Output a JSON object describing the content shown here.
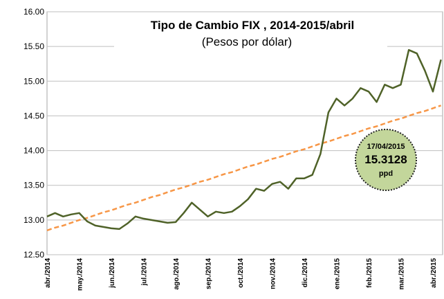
{
  "chart_data": {
    "type": "line",
    "title": "Tipo de Cambio FIX , 2014-2015/abril",
    "subtitle": "(Pesos por dólar)",
    "categories": [
      "abr./2014",
      null,
      null,
      null,
      "may./2014",
      null,
      null,
      null,
      "jun./2014",
      null,
      null,
      null,
      "jul./2014",
      null,
      null,
      null,
      "ago./2014",
      null,
      null,
      null,
      "sep./2014",
      null,
      null,
      null,
      "oct./2014",
      null,
      null,
      null,
      "nov./2014",
      null,
      null,
      null,
      "dic./2014",
      null,
      null,
      null,
      "ene./2015",
      null,
      null,
      null,
      "feb./2015",
      null,
      null,
      null,
      "mar./2015",
      null,
      null,
      null,
      "abr./2015",
      null
    ],
    "series": [
      {
        "color": "#4f6228",
        "values": [
          13.05,
          13.1,
          13.05,
          13.08,
          13.1,
          12.98,
          12.92,
          12.9,
          12.88,
          12.87,
          12.95,
          13.05,
          13.02,
          13.0,
          12.98,
          12.96,
          12.97,
          13.1,
          13.25,
          13.15,
          13.05,
          13.12,
          13.1,
          13.12,
          13.2,
          13.3,
          13.45,
          13.42,
          13.52,
          13.55,
          13.45,
          13.6,
          13.6,
          13.65,
          13.95,
          14.55,
          14.75,
          14.65,
          14.75,
          14.9,
          14.85,
          14.7,
          14.95,
          14.9,
          14.95,
          15.45,
          15.4,
          15.15,
          14.85,
          15.31
        ]
      },
      {
        "color": "#f79646",
        "dashed": true,
        "values": [
          12.85,
          12.89,
          12.92,
          12.96,
          13.0,
          13.03,
          13.07,
          13.11,
          13.14,
          13.18,
          13.22,
          13.25,
          13.29,
          13.33,
          13.36,
          13.4,
          13.44,
          13.47,
          13.51,
          13.55,
          13.58,
          13.62,
          13.66,
          13.69,
          13.73,
          13.77,
          13.8,
          13.84,
          13.88,
          13.91,
          13.95,
          13.99,
          14.02,
          14.06,
          14.1,
          14.13,
          14.17,
          14.21,
          14.24,
          14.28,
          14.32,
          14.35,
          14.39,
          14.43,
          14.46,
          14.5,
          14.54,
          14.57,
          14.61,
          14.65
        ]
      }
    ],
    "ylim": [
      12.5,
      16.0
    ],
    "yticks": [
      {
        "value": 12.5,
        "label": "12.50"
      },
      {
        "value": 13,
        "label": "13.00"
      },
      {
        "value": 13.5,
        "label": "13.50"
      },
      {
        "value": 14,
        "label": "14.00"
      },
      {
        "value": 14.5,
        "label": "14.50"
      },
      {
        "value": 15,
        "label": "15.00"
      },
      {
        "value": 15.5,
        "label": "15.50"
      },
      {
        "value": 16,
        "label": "16.00"
      }
    ],
    "grid": true,
    "annotation": {
      "date": "17/04/2015",
      "value": 15.3128,
      "unit": "ppd"
    }
  }
}
